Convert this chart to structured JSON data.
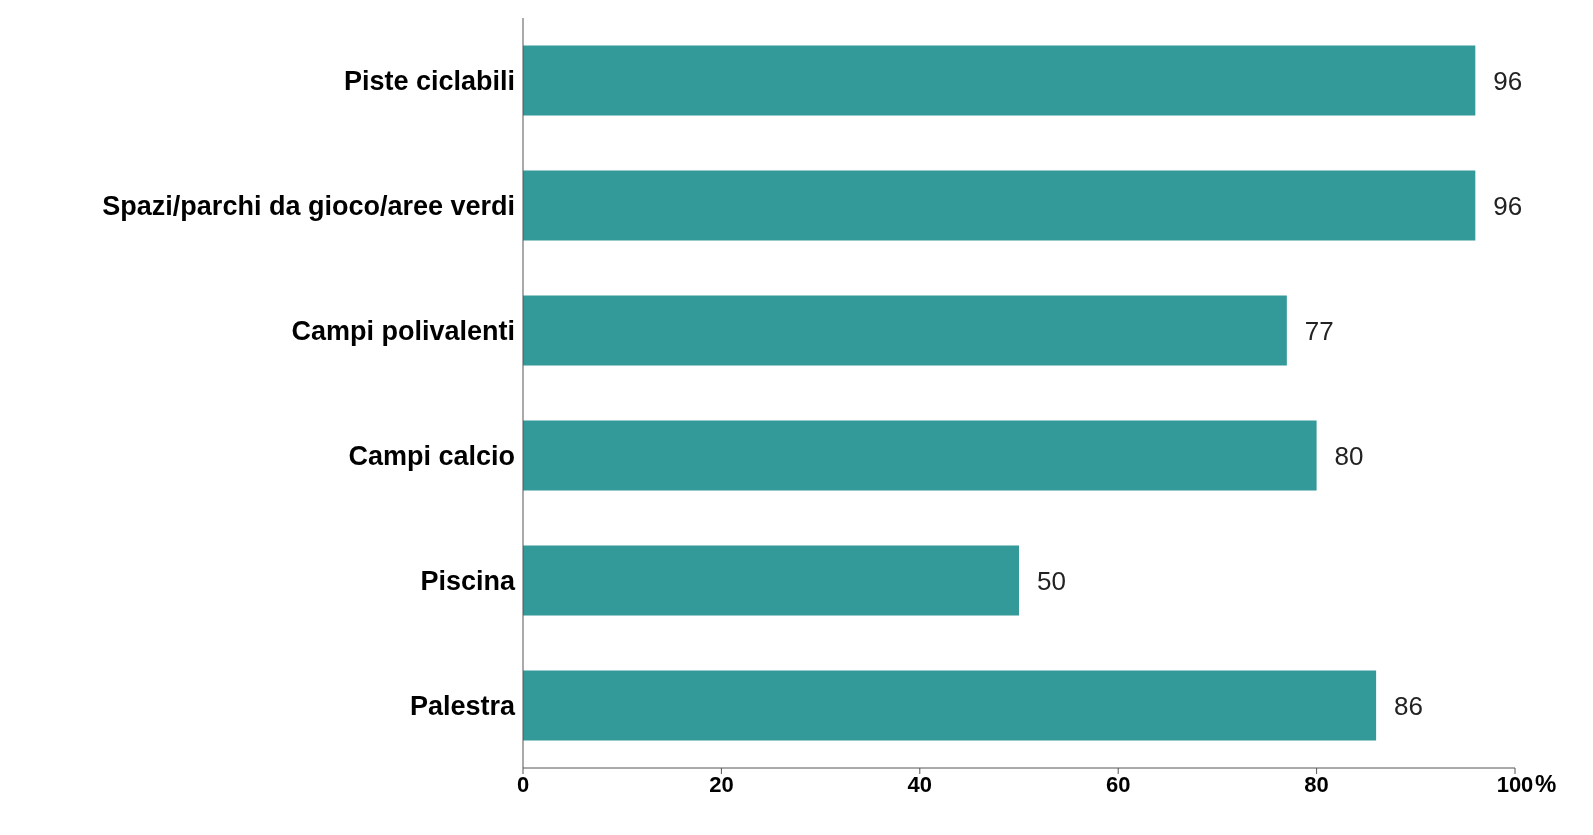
{
  "chart_data": {
    "type": "bar",
    "orientation": "horizontal",
    "categories": [
      "Piste ciclabili",
      "Spazi/parchi da gioco/aree verdi",
      "Campi polivalenti",
      "Campi calcio",
      "Piscina",
      "Palestra"
    ],
    "values": [
      96,
      96,
      77,
      80,
      50,
      86
    ],
    "color": "#339999",
    "xlabel": "%",
    "xlim": [
      0,
      100
    ],
    "xticks": [
      0,
      20,
      40,
      60,
      80,
      100
    ],
    "data_labels": true,
    "grid": false,
    "legend": false
  }
}
